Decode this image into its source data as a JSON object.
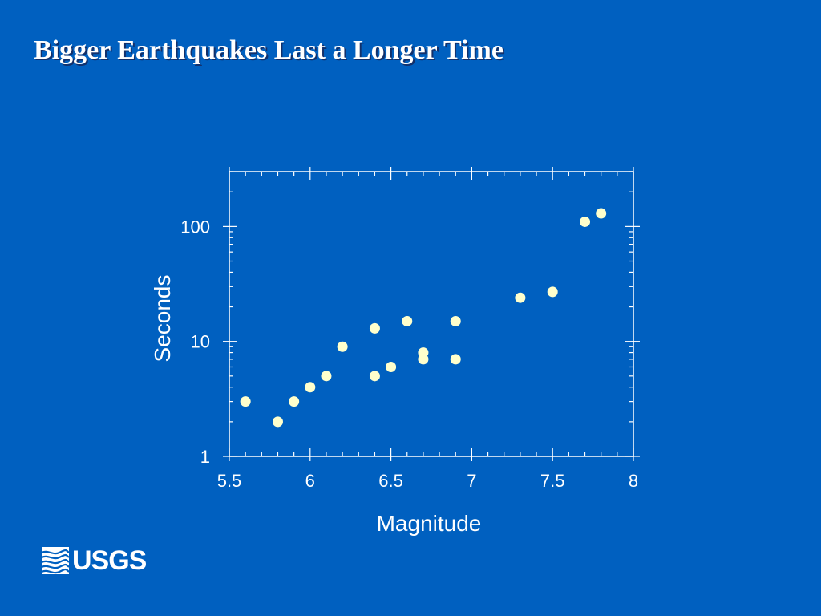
{
  "slide": {
    "title": "Bigger Earthquakes Last a Longer Time",
    "logo_text": "USGS"
  },
  "colors": {
    "background": "#0060C0",
    "marker": "#FFFFCC",
    "axis": "#FFFFFF"
  },
  "chart_data": {
    "type": "scatter",
    "title": "",
    "xlabel": "Magnitude",
    "ylabel": "Seconds",
    "xlim": [
      5.5,
      8
    ],
    "ylim": [
      1,
      300
    ],
    "y_scale": "log",
    "grid": false,
    "x_ticks": [
      "5.5",
      "6",
      "6.5",
      "7",
      "7.5",
      "8"
    ],
    "y_ticks": [
      "1",
      "10",
      "100"
    ],
    "points": [
      {
        "x": 5.6,
        "y": 3
      },
      {
        "x": 5.8,
        "y": 2
      },
      {
        "x": 5.9,
        "y": 3
      },
      {
        "x": 6.0,
        "y": 4
      },
      {
        "x": 6.1,
        "y": 5
      },
      {
        "x": 6.2,
        "y": 9
      },
      {
        "x": 6.4,
        "y": 5
      },
      {
        "x": 6.4,
        "y": 13
      },
      {
        "x": 6.5,
        "y": 6
      },
      {
        "x": 6.6,
        "y": 15
      },
      {
        "x": 6.7,
        "y": 7
      },
      {
        "x": 6.7,
        "y": 8
      },
      {
        "x": 6.9,
        "y": 7
      },
      {
        "x": 6.9,
        "y": 15
      },
      {
        "x": 7.3,
        "y": 24
      },
      {
        "x": 7.5,
        "y": 27
      },
      {
        "x": 7.7,
        "y": 110
      },
      {
        "x": 7.8,
        "y": 130
      }
    ]
  }
}
